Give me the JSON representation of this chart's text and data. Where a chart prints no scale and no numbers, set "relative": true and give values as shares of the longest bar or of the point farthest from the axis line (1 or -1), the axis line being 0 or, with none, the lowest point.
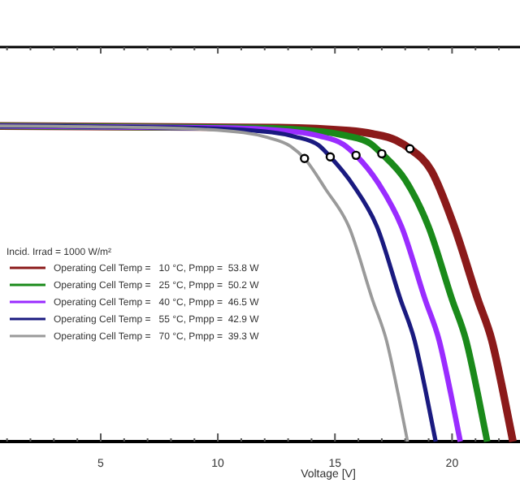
{
  "chart_data": {
    "type": "line",
    "relative": true,
    "xlabel": "Voltage [V]",
    "legend_title": "Incid. Irrad = 1000 W/m²",
    "legend": "bottom left",
    "marker": "none",
    "line_style": "solid",
    "xlim": [
      0.7,
      22.9
    ],
    "xticks": [
      {
        "value": 1,
        "label": null
      },
      {
        "value": 2,
        "label": null
      },
      {
        "value": 3,
        "label": null
      },
      {
        "value": 4,
        "label": null
      },
      5,
      {
        "value": 6,
        "label": null
      },
      {
        "value": 7,
        "label": null
      },
      {
        "value": 8,
        "label": null
      },
      {
        "value": 9,
        "label": null
      },
      10,
      {
        "value": 11,
        "label": null
      },
      {
        "value": 12,
        "label": null
      },
      {
        "value": 13,
        "label": null
      },
      {
        "value": 14,
        "label": null
      },
      15,
      {
        "value": 16,
        "label": null
      },
      {
        "value": 17,
        "label": null
      },
      {
        "value": 18,
        "label": null
      },
      {
        "value": 19,
        "label": null
      },
      20,
      {
        "value": 21,
        "label": null
      },
      {
        "value": 22,
        "label": null
      }
    ],
    "series": [
      {
        "name": "Operating Cell Temp =   10 °C, Pmpp =  53.8 W",
        "color": "#8b1a1a",
        "x": [
          0.7,
          12.6,
          15.6,
          16.6,
          17.6,
          18.2,
          19.1,
          20.1,
          21.1,
          21.7,
          22.2,
          22.6
        ],
        "values": [
          1.0,
          0.995,
          0.985,
          0.975,
          0.955,
          0.928,
          0.86,
          0.68,
          0.45,
          0.32,
          0.15,
          0
        ]
      },
      {
        "name": "Operating Cell Temp =   25 °C, Pmpp =  50.2 W",
        "color": "#1a8a1a",
        "x": [
          0.7,
          11.5,
          14.5,
          15.5,
          16.5,
          17.0,
          18.0,
          19.0,
          20.0,
          20.6,
          21.1,
          21.5
        ],
        "values": [
          1.0,
          0.994,
          0.982,
          0.969,
          0.945,
          0.912,
          0.829,
          0.68,
          0.45,
          0.32,
          0.15,
          0
        ]
      },
      {
        "name": "Operating Cell Temp =   40 °C, Pmpp =  46.5 W",
        "color": "#9a2cff",
        "x": [
          0.7,
          10.35,
          13.35,
          14.35,
          15.35,
          15.9,
          16.85,
          17.85,
          18.85,
          19.45,
          19.95,
          20.35
        ],
        "values": [
          1.0,
          0.994,
          0.981,
          0.968,
          0.942,
          0.907,
          0.819,
          0.68,
          0.45,
          0.32,
          0.15,
          0
        ]
      },
      {
        "name": "Operating Cell Temp =   55 °C, Pmpp =  42.9 W",
        "color": "#1a1a80",
        "x": [
          0.7,
          9.3,
          12.3,
          13.3,
          14.3,
          14.8,
          15.8,
          16.8,
          17.8,
          18.4,
          18.9,
          19.3
        ],
        "values": [
          1.0,
          0.993,
          0.98,
          0.966,
          0.939,
          0.902,
          0.81,
          0.68,
          0.45,
          0.32,
          0.15,
          0
        ]
      },
      {
        "name": "Operating Cell Temp =   70 °C, Pmpp =  39.3 W",
        "color": "#9a9a9a",
        "x": [
          0.7,
          8.1,
          11.1,
          12.1,
          13.1,
          13.7,
          14.6,
          15.6,
          16.6,
          17.2,
          17.7,
          18.1
        ],
        "values": [
          1.0,
          0.993,
          0.979,
          0.964,
          0.936,
          0.897,
          0.8,
          0.68,
          0.45,
          0.32,
          0.15,
          0
        ]
      },
      {
        "type": "scatter",
        "marker": "circle",
        "color": "#000000",
        "x": [
          18.2,
          17.0,
          15.9,
          14.8,
          13.7
        ],
        "values": [
          0.928,
          0.912,
          0.907,
          0.902,
          0.897
        ]
      }
    ]
  }
}
